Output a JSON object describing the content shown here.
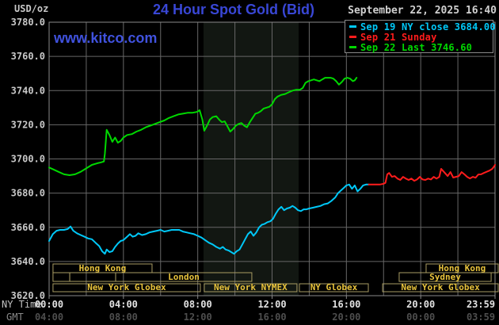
{
  "header": {
    "unit": "USD/oz",
    "title": "24 Hour Spot Gold (Bid)",
    "datetime": "September 22, 2025 16:40",
    "watermark": "www.kitco.com"
  },
  "legend": {
    "entries": [
      {
        "label": "Sep 19 NY close 3684.00",
        "color": "#00c8f8"
      },
      {
        "label": "Sep 21 Sunday",
        "color": "#ff1c1c"
      },
      {
        "label": "Sep 22 Last 3746.60",
        "color": "#00d800"
      }
    ]
  },
  "axes": {
    "x_left_label_ny": "NY Time",
    "x_left_label_gmt": "GMT",
    "tick_hours": [
      0,
      4,
      8,
      12,
      16,
      20,
      24
    ],
    "ny_ticks": [
      "00:00",
      "04:00",
      "08:00",
      "12:00",
      "16:00",
      "20:00",
      "23:59"
    ],
    "gmt_ticks": [
      "04:00",
      "08:00",
      "12:00",
      "16:00",
      "20:00",
      "00:00",
      "03:59"
    ],
    "y_tick_step": 20,
    "y_ticks": [
      "3780.0",
      "3760.0",
      "3740.0",
      "3720.0",
      "3700.0",
      "3680.0",
      "3660.0",
      "3640.0",
      "3620.0"
    ]
  },
  "chart_data": {
    "type": "line",
    "title": "24 Hour Spot Gold (Bid)",
    "ylabel": "USD/oz",
    "ylim": [
      3620,
      3780
    ],
    "xlim_hours": [
      0,
      24
    ],
    "grid": {
      "x_step_hours": 2,
      "y_step": 20,
      "on": true
    },
    "shaded_band_hours": [
      8.31,
      13.43
    ],
    "series": [
      {
        "name": "Sep 19 NY close",
        "color": "#00c8f8",
        "close": 3684.0,
        "points": [
          [
            0.0,
            3652
          ],
          [
            0.2,
            3656
          ],
          [
            0.4,
            3658
          ],
          [
            0.6,
            3658.5
          ],
          [
            0.8,
            3658.5
          ],
          [
            1.0,
            3659
          ],
          [
            1.15,
            3660.5
          ],
          [
            1.3,
            3658
          ],
          [
            1.5,
            3656.5
          ],
          [
            1.7,
            3655.5
          ],
          [
            1.9,
            3654.5
          ],
          [
            2.1,
            3653.5
          ],
          [
            2.3,
            3653
          ],
          [
            2.5,
            3651
          ],
          [
            2.7,
            3649
          ],
          [
            2.85,
            3646
          ],
          [
            3.0,
            3644.5
          ],
          [
            3.1,
            3647
          ],
          [
            3.25,
            3645.5
          ],
          [
            3.4,
            3646
          ],
          [
            3.55,
            3648.5
          ],
          [
            3.7,
            3650.5
          ],
          [
            3.85,
            3652
          ],
          [
            4.0,
            3652.5
          ],
          [
            4.2,
            3654.5
          ],
          [
            4.35,
            3656
          ],
          [
            4.5,
            3654.5
          ],
          [
            4.65,
            3655
          ],
          [
            4.8,
            3656.5
          ],
          [
            5.0,
            3655.5
          ],
          [
            5.2,
            3656
          ],
          [
            5.4,
            3657
          ],
          [
            5.6,
            3657.5
          ],
          [
            5.8,
            3658
          ],
          [
            6.0,
            3658.5
          ],
          [
            6.2,
            3657.5
          ],
          [
            6.4,
            3658
          ],
          [
            6.6,
            3658.5
          ],
          [
            6.8,
            3658.5
          ],
          [
            7.0,
            3658.5
          ],
          [
            7.2,
            3657.5
          ],
          [
            7.4,
            3657
          ],
          [
            7.6,
            3656.5
          ],
          [
            7.8,
            3656
          ],
          [
            8.0,
            3655
          ],
          [
            8.2,
            3654
          ],
          [
            8.4,
            3652.5
          ],
          [
            8.6,
            3651
          ],
          [
            8.8,
            3650
          ],
          [
            9.0,
            3648.5
          ],
          [
            9.2,
            3647.5
          ],
          [
            9.35,
            3648.5
          ],
          [
            9.5,
            3647
          ],
          [
            9.65,
            3646.5
          ],
          [
            9.8,
            3645.5
          ],
          [
            9.95,
            3644.5
          ],
          [
            10.1,
            3646
          ],
          [
            10.25,
            3647
          ],
          [
            10.4,
            3650
          ],
          [
            10.55,
            3653
          ],
          [
            10.7,
            3656
          ],
          [
            10.85,
            3657.5
          ],
          [
            11.0,
            3655
          ],
          [
            11.15,
            3657
          ],
          [
            11.3,
            3660
          ],
          [
            11.45,
            3661.5
          ],
          [
            11.6,
            3662
          ],
          [
            11.75,
            3663
          ],
          [
            11.9,
            3663.5
          ],
          [
            12.05,
            3665
          ],
          [
            12.2,
            3668
          ],
          [
            12.35,
            3670.5
          ],
          [
            12.5,
            3672
          ],
          [
            12.65,
            3670
          ],
          [
            12.8,
            3671
          ],
          [
            12.95,
            3671.5
          ],
          [
            13.1,
            3672.5
          ],
          [
            13.25,
            3671.5
          ],
          [
            13.4,
            3670
          ],
          [
            13.55,
            3669.5
          ],
          [
            13.7,
            3670.5
          ],
          [
            13.85,
            3670.5
          ],
          [
            14.0,
            3671
          ],
          [
            14.2,
            3671.5
          ],
          [
            14.4,
            3672
          ],
          [
            14.6,
            3672.5
          ],
          [
            14.8,
            3673.5
          ],
          [
            15.0,
            3674
          ],
          [
            15.2,
            3675.5
          ],
          [
            15.4,
            3677.5
          ],
          [
            15.55,
            3680
          ],
          [
            15.7,
            3681.5
          ],
          [
            15.85,
            3683
          ],
          [
            16.0,
            3684.5
          ],
          [
            16.15,
            3685
          ],
          [
            16.3,
            3682.5
          ],
          [
            16.45,
            3684.5
          ],
          [
            16.6,
            3681
          ],
          [
            16.75,
            3682.5
          ],
          [
            16.9,
            3684.5
          ],
          [
            17.05,
            3685
          ],
          [
            17.2,
            3685
          ]
        ]
      },
      {
        "name": "Sep 21 Sunday",
        "color": "#ff1c1c",
        "points": [
          [
            17.2,
            3685
          ],
          [
            17.5,
            3685
          ],
          [
            17.8,
            3685
          ],
          [
            18.0,
            3685.5
          ],
          [
            18.1,
            3686
          ],
          [
            18.2,
            3691
          ],
          [
            18.3,
            3691.8
          ],
          [
            18.45,
            3689.5
          ],
          [
            18.6,
            3690
          ],
          [
            18.75,
            3688.5
          ],
          [
            18.9,
            3687.7
          ],
          [
            19.05,
            3689.5
          ],
          [
            19.2,
            3688.5
          ],
          [
            19.35,
            3687.7
          ],
          [
            19.5,
            3688.5
          ],
          [
            19.65,
            3687.2
          ],
          [
            19.8,
            3688
          ],
          [
            19.95,
            3689.5
          ],
          [
            20.1,
            3688
          ],
          [
            20.25,
            3687.7
          ],
          [
            20.4,
            3688.5
          ],
          [
            20.55,
            3688
          ],
          [
            20.7,
            3689.5
          ],
          [
            20.85,
            3688.5
          ],
          [
            21.0,
            3689.5
          ],
          [
            21.1,
            3694.2
          ],
          [
            21.2,
            3693
          ],
          [
            21.3,
            3691.8
          ],
          [
            21.45,
            3690
          ],
          [
            21.6,
            3692.3
          ],
          [
            21.75,
            3689.1
          ],
          [
            21.9,
            3689.5
          ],
          [
            22.05,
            3690
          ],
          [
            22.2,
            3692.3
          ],
          [
            22.35,
            3691
          ],
          [
            22.5,
            3689.5
          ],
          [
            22.65,
            3688.6
          ],
          [
            22.8,
            3689.5
          ],
          [
            22.95,
            3689
          ],
          [
            23.1,
            3690.9
          ],
          [
            23.25,
            3691
          ],
          [
            23.4,
            3691.8
          ],
          [
            23.55,
            3692.5
          ],
          [
            23.7,
            3693.2
          ],
          [
            23.85,
            3694.2
          ],
          [
            23.95,
            3695.6
          ],
          [
            24.0,
            3696.5
          ]
        ]
      },
      {
        "name": "Sep 22 Last",
        "color": "#00d800",
        "last": 3746.6,
        "points": [
          [
            0.0,
            3695
          ],
          [
            0.2,
            3694
          ],
          [
            0.5,
            3692.5
          ],
          [
            0.8,
            3691
          ],
          [
            1.1,
            3690.5
          ],
          [
            1.4,
            3691
          ],
          [
            1.7,
            3692.5
          ],
          [
            2.0,
            3694.5
          ],
          [
            2.3,
            3696.5
          ],
          [
            2.6,
            3697.5
          ],
          [
            2.8,
            3698
          ],
          [
            2.95,
            3698.5
          ],
          [
            3.0,
            3703
          ],
          [
            3.1,
            3717
          ],
          [
            3.25,
            3714
          ],
          [
            3.4,
            3710
          ],
          [
            3.55,
            3712.5
          ],
          [
            3.7,
            3709.5
          ],
          [
            3.85,
            3710.5
          ],
          [
            4.0,
            3712.5
          ],
          [
            4.2,
            3714
          ],
          [
            4.45,
            3714.5
          ],
          [
            4.7,
            3716
          ],
          [
            4.95,
            3717
          ],
          [
            5.2,
            3718.5
          ],
          [
            5.45,
            3719.5
          ],
          [
            5.7,
            3720.5
          ],
          [
            5.95,
            3721.5
          ],
          [
            6.2,
            3722.5
          ],
          [
            6.45,
            3724
          ],
          [
            6.7,
            3725
          ],
          [
            6.95,
            3726
          ],
          [
            7.2,
            3726.5
          ],
          [
            7.45,
            3727
          ],
          [
            7.7,
            3727
          ],
          [
            7.95,
            3727.5
          ],
          [
            8.1,
            3728.5
          ],
          [
            8.25,
            3723
          ],
          [
            8.35,
            3716.5
          ],
          [
            8.5,
            3719.5
          ],
          [
            8.65,
            3723
          ],
          [
            8.8,
            3724.5
          ],
          [
            9.0,
            3725
          ],
          [
            9.15,
            3723
          ],
          [
            9.3,
            3721.5
          ],
          [
            9.45,
            3722
          ],
          [
            9.6,
            3719
          ],
          [
            9.75,
            3716
          ],
          [
            9.9,
            3717.5
          ],
          [
            10.05,
            3719.5
          ],
          [
            10.2,
            3720.5
          ],
          [
            10.35,
            3721
          ],
          [
            10.5,
            3719.5
          ],
          [
            10.65,
            3718.5
          ],
          [
            10.8,
            3721.5
          ],
          [
            10.95,
            3724
          ],
          [
            11.1,
            3726.5
          ],
          [
            11.25,
            3727
          ],
          [
            11.4,
            3728
          ],
          [
            11.55,
            3729.5
          ],
          [
            11.7,
            3730
          ],
          [
            11.85,
            3730.5
          ],
          [
            12.0,
            3732
          ],
          [
            12.15,
            3735
          ],
          [
            12.3,
            3736.5
          ],
          [
            12.5,
            3737.5
          ],
          [
            12.7,
            3738
          ],
          [
            12.9,
            3739
          ],
          [
            13.1,
            3740
          ],
          [
            13.3,
            3740.5
          ],
          [
            13.5,
            3740.5
          ],
          [
            13.65,
            3741.5
          ],
          [
            13.8,
            3744.5
          ],
          [
            13.95,
            3745.5
          ],
          [
            14.1,
            3746
          ],
          [
            14.25,
            3746.5
          ],
          [
            14.4,
            3746
          ],
          [
            14.55,
            3745.5
          ],
          [
            14.7,
            3746.5
          ],
          [
            14.85,
            3747.5
          ],
          [
            15.0,
            3747.5
          ],
          [
            15.15,
            3747.5
          ],
          [
            15.3,
            3747
          ],
          [
            15.45,
            3745.5
          ],
          [
            15.6,
            3743.5
          ],
          [
            15.75,
            3745
          ],
          [
            15.9,
            3747
          ],
          [
            16.05,
            3747.5
          ],
          [
            16.2,
            3747
          ],
          [
            16.35,
            3745.5
          ],
          [
            16.45,
            3746
          ],
          [
            16.55,
            3747.5
          ]
        ]
      }
    ],
    "sessions": {
      "rows_y": [
        [
          333,
          344
        ],
        [
          344,
          355
        ],
        [
          358,
          368
        ]
      ],
      "boxes": [
        {
          "row": 0,
          "label": "Hong Kong",
          "h1": 0.21,
          "h2": 5.54
        },
        {
          "row": 0,
          "label": "Hong Kong",
          "h1": 20.29,
          "h2": 24.17
        },
        {
          "row": 1,
          "label": "",
          "h1": 0.21,
          "h2": 1.11
        },
        {
          "row": 1,
          "label": "",
          "h1": 1.11,
          "h2": 3.58
        },
        {
          "row": 1,
          "label": "London",
          "h1": 3.58,
          "h2": 10.91
        },
        {
          "row": 1,
          "label": "Sydney",
          "h1": 18.84,
          "h2": 23.79
        },
        {
          "row": 2,
          "label": "New York Globex",
          "h1": 0.21,
          "h2": 8.14
        },
        {
          "row": 2,
          "label": "New York NYMEX",
          "h1": 8.35,
          "h2": 13.34
        },
        {
          "row": 2,
          "label": "NY Globex",
          "h1": 13.47,
          "h2": 17.18
        },
        {
          "row": 2,
          "label": "New York Globex",
          "h1": 17.95,
          "h2": 24.17
        }
      ]
    }
  },
  "colors": {
    "background": "#000000",
    "plot_border": "#8a8a8a",
    "grid": "#676767",
    "shaded_band": "#121712",
    "session_border": "#a99c63",
    "session_text": "#e8c33c",
    "title_blue": "#3947d6",
    "tick_text": "#c8c8c8",
    "gmt_text": "#4e4e4e"
  }
}
